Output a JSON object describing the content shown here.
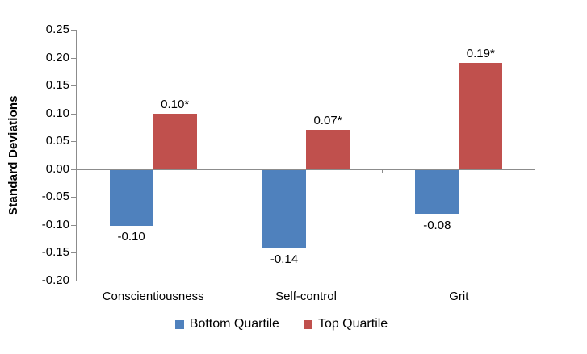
{
  "chart_data": {
    "type": "bar",
    "title": "",
    "xlabel": "",
    "ylabel": "Standard Deviations",
    "categories": [
      "Conscientiousness",
      "Self-control",
      "Grit"
    ],
    "series": [
      {
        "name": "Bottom Quartile",
        "color": "#4F81BD",
        "values": [
          -0.1,
          -0.14,
          -0.08
        ],
        "value_labels": [
          "-0.10",
          "-0.14",
          "-0.08"
        ]
      },
      {
        "name": "Top Quartile",
        "color": "#C0504D",
        "values": [
          0.1,
          0.07,
          0.19
        ],
        "value_labels": [
          "0.10*",
          "0.07*",
          "0.19*"
        ]
      }
    ],
    "ylim": [
      -0.2,
      0.25
    ],
    "y_tick_step": 0.05,
    "y_tick_labels": [
      "0.25",
      "0.20",
      "0.15",
      "0.10",
      "0.05",
      "0.00",
      "-0.05",
      "-0.10",
      "-0.15",
      "-0.20"
    ],
    "grid": false,
    "legend_position": "bottom",
    "axis_color": "#8C8C8C",
    "text_color": "#000000",
    "background_color": "#FFFFFF"
  }
}
